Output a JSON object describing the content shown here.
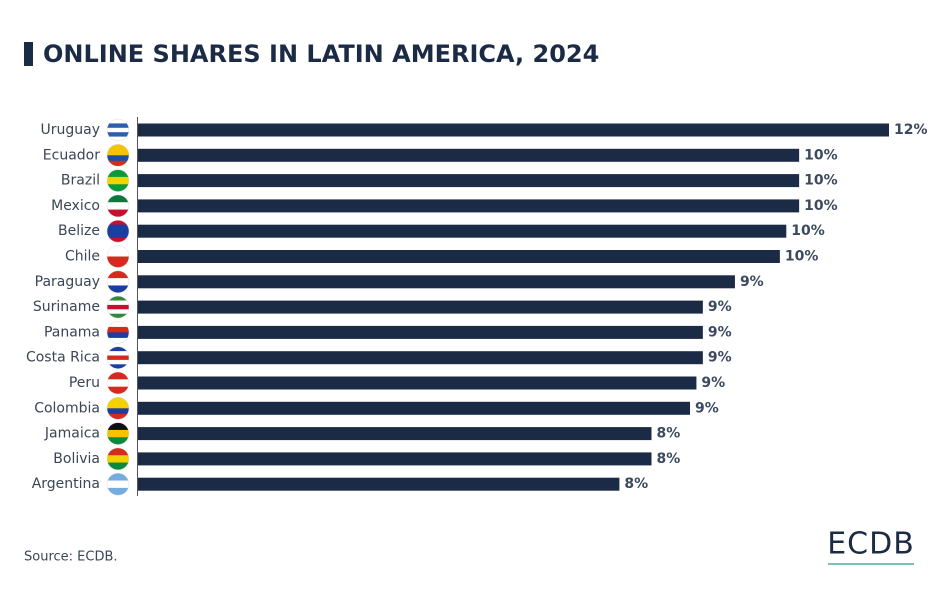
{
  "chart_data": {
    "type": "bar",
    "orientation": "horizontal",
    "title": "ONLINE SHARES IN LATIN AMERICA, 2024",
    "categories": [
      "Uruguay",
      "Ecuador",
      "Brazil",
      "Mexico",
      "Belize",
      "Chile",
      "Paraguay",
      "Suriname",
      "Panama",
      "Costa Rica",
      "Peru",
      "Colombia",
      "Jamaica",
      "Bolivia",
      "Argentina"
    ],
    "values": [
      11.7,
      10.3,
      10.3,
      10.3,
      10.1,
      10.0,
      9.3,
      8.8,
      8.8,
      8.8,
      8.7,
      8.6,
      8.0,
      8.0,
      7.5
    ],
    "value_labels": [
      "12%",
      "10%",
      "10%",
      "10%",
      "10%",
      "10%",
      "9%",
      "9%",
      "9%",
      "9%",
      "9%",
      "9%",
      "8%",
      "8%",
      "8%"
    ],
    "color": "#1c2b45",
    "source": "Source: ECDB.",
    "logo": "ECDB"
  }
}
